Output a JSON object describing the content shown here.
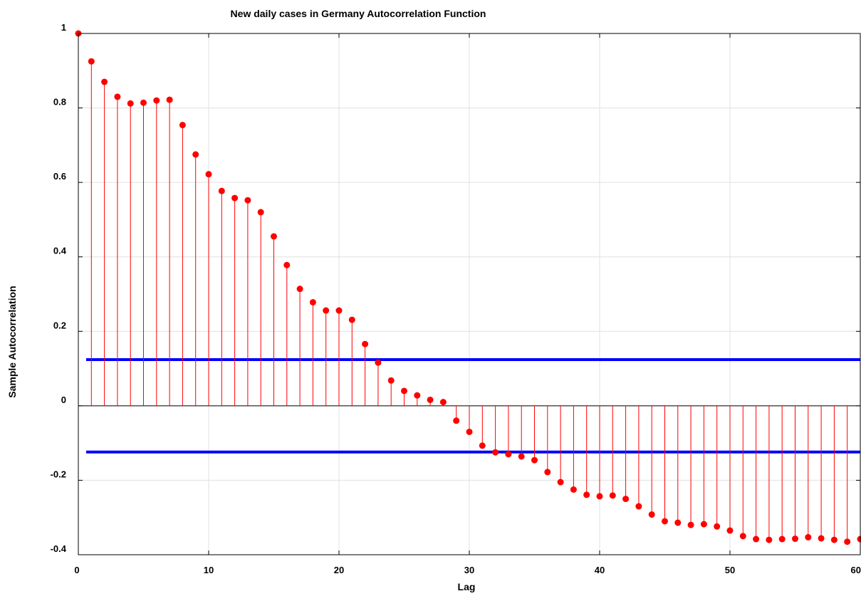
{
  "chart_data": {
    "type": "stem",
    "title": "New daily cases in Germany Autocorrelation Function",
    "xlabel": "Lag",
    "ylabel": "Sample Autocorrelation",
    "xlim": [
      0,
      60
    ],
    "ylim": [
      -0.4,
      1
    ],
    "x_ticks": [
      "0",
      "10",
      "20",
      "30",
      "40",
      "50",
      "60"
    ],
    "y_ticks": [
      "-0.4",
      "-0.2",
      "0",
      "0.2",
      "0.4",
      "0.6",
      "0.8",
      "1"
    ],
    "grid": true,
    "colors": {
      "stem": "#ff0000",
      "bounds": "#0000ff"
    },
    "confidence_bounds": {
      "upper": 0.124,
      "lower": -0.124
    },
    "lags": [
      0,
      1,
      2,
      3,
      4,
      5,
      6,
      7,
      8,
      9,
      10,
      11,
      12,
      13,
      14,
      15,
      16,
      17,
      18,
      19,
      20,
      21,
      22,
      23,
      24,
      25,
      26,
      27,
      28,
      29,
      30,
      31,
      32,
      33,
      34,
      35,
      36,
      37,
      38,
      39,
      40,
      41,
      42,
      43,
      44,
      45,
      46,
      47,
      48,
      49,
      50,
      51,
      52,
      53,
      54,
      55,
      56,
      57,
      58,
      59,
      60
    ],
    "acf": [
      1.0,
      0.925,
      0.87,
      0.83,
      0.812,
      0.814,
      0.82,
      0.822,
      0.754,
      0.675,
      0.622,
      0.577,
      0.558,
      0.552,
      0.52,
      0.455,
      0.378,
      0.314,
      0.278,
      0.256,
      0.256,
      0.231,
      0.166,
      0.116,
      0.068,
      0.04,
      0.028,
      0.016,
      0.01,
      -0.04,
      -0.07,
      -0.107,
      -0.125,
      -0.13,
      -0.136,
      -0.146,
      -0.178,
      -0.205,
      -0.225,
      -0.239,
      -0.243,
      -0.241,
      -0.25,
      -0.27,
      -0.292,
      -0.31,
      -0.314,
      -0.32,
      -0.318,
      -0.324,
      -0.335,
      -0.35,
      -0.358,
      -0.36,
      -0.358,
      -0.357,
      -0.353,
      -0.356,
      -0.36,
      -0.365,
      -0.358
    ]
  }
}
